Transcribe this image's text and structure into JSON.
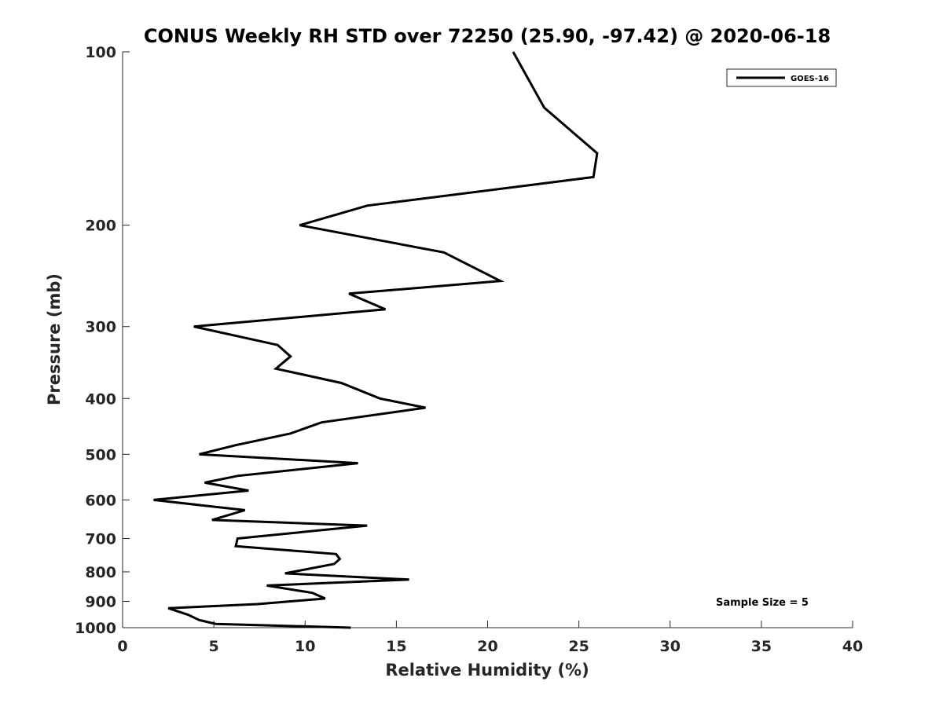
{
  "chart_data": {
    "type": "line",
    "title": "CONUS Weekly RH STD over 72250 (25.90, -97.42) @ 2020-06-18",
    "xlabel": "Relative Humidity (%)",
    "ylabel": "Pressure (mb)",
    "xlim": [
      0,
      40
    ],
    "ylim": [
      100,
      1000
    ],
    "y_scale": "log",
    "y_reversed": true,
    "grid": false,
    "legend_position": "top-right",
    "x_ticks": [
      "0",
      "5",
      "10",
      "15",
      "20",
      "25",
      "30",
      "35",
      "40"
    ],
    "y_ticks": [
      "100",
      "200",
      "300",
      "400",
      "500",
      "600",
      "700",
      "800",
      "900",
      "1000"
    ],
    "annotation": "Sample Size = 5",
    "series": [
      {
        "name": "GOES-16",
        "color": "#000000",
        "points": [
          [
            21.4,
            100
          ],
          [
            23.1,
            125
          ],
          [
            26.0,
            150
          ],
          [
            25.8,
            165
          ],
          [
            13.4,
            185
          ],
          [
            9.7,
            200
          ],
          [
            17.6,
            223
          ],
          [
            20.7,
            250
          ],
          [
            12.4,
            263
          ],
          [
            14.4,
            280
          ],
          [
            3.9,
            300
          ],
          [
            8.5,
            323
          ],
          [
            9.2,
            338
          ],
          [
            8.4,
            355
          ],
          [
            12.0,
            376
          ],
          [
            14.1,
            400
          ],
          [
            16.6,
            415
          ],
          [
            10.9,
            440
          ],
          [
            9.2,
            460
          ],
          [
            6.2,
            482
          ],
          [
            4.2,
            500
          ],
          [
            12.9,
            518
          ],
          [
            6.3,
            545
          ],
          [
            4.5,
            560
          ],
          [
            6.9,
            578
          ],
          [
            1.7,
            600
          ],
          [
            6.7,
            625
          ],
          [
            4.9,
            650
          ],
          [
            13.4,
            665
          ],
          [
            6.3,
            700
          ],
          [
            6.2,
            722
          ],
          [
            11.7,
            745
          ],
          [
            11.9,
            760
          ],
          [
            11.6,
            775
          ],
          [
            8.9,
            805
          ],
          [
            15.7,
            825
          ],
          [
            7.9,
            845
          ],
          [
            10.4,
            870
          ],
          [
            11.1,
            890
          ],
          [
            7.4,
            910
          ],
          [
            2.5,
            925
          ],
          [
            3.6,
            950
          ],
          [
            4.2,
            970
          ],
          [
            5.1,
            985
          ],
          [
            12.5,
            1000
          ]
        ]
      }
    ]
  }
}
